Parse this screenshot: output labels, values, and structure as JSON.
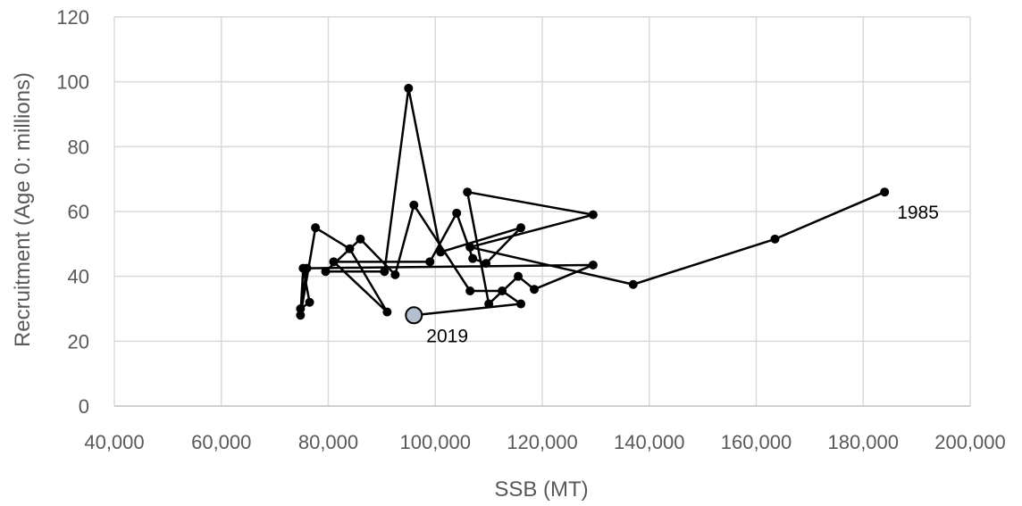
{
  "chart_data": {
    "type": "scatter",
    "xlabel": "SSB (MT)",
    "ylabel": "Recruitment (Age 0: millions)",
    "xlim": [
      40000,
      200000
    ],
    "ylim": [
      0,
      120
    ],
    "x_ticks": [
      "40,000",
      "60,000",
      "80,000",
      "100,000",
      "120,000",
      "140,000",
      "160,000",
      "180,000",
      "200,000"
    ],
    "y_ticks": [
      "0",
      "20",
      "40",
      "60",
      "80",
      "100",
      "120"
    ],
    "grid": true,
    "connected": true,
    "line_color": "#000000",
    "marker_color": "#000000",
    "last_marker_color": "#b4c0d0",
    "annotations": [
      {
        "text": "1985",
        "x": 184000,
        "y": 66
      },
      {
        "text": "2019",
        "x": 96000,
        "y": 28
      }
    ],
    "series": [
      {
        "points": [
          [
            184000,
            66
          ],
          [
            163500,
            51.5
          ],
          [
            137000,
            37.5
          ],
          [
            106500,
            49
          ],
          [
            129500,
            59
          ],
          [
            106000,
            66
          ],
          [
            110000,
            31.5
          ],
          [
            115500,
            40
          ],
          [
            118500,
            36
          ],
          [
            129500,
            43.5
          ],
          [
            76000,
            42.5
          ],
          [
            74800,
            30
          ],
          [
            76500,
            32
          ],
          [
            75300,
            42.5
          ],
          [
            74800,
            28
          ],
          [
            77600,
            55
          ],
          [
            84000,
            48.5
          ],
          [
            91000,
            29
          ],
          [
            81000,
            44.5
          ],
          [
            99000,
            44.5
          ],
          [
            104000,
            59.5
          ],
          [
            107000,
            45.5
          ],
          [
            109500,
            44
          ],
          [
            116000,
            55
          ],
          [
            101000,
            47.5
          ],
          [
            95000,
            98
          ],
          [
            90500,
            41.5
          ],
          [
            79500,
            41.5
          ],
          [
            86000,
            51.5
          ],
          [
            92500,
            40.5
          ],
          [
            96000,
            62
          ],
          [
            106500,
            35.5
          ],
          [
            112500,
            35.5
          ],
          [
            116000,
            31.5
          ],
          [
            96000,
            28
          ]
        ]
      }
    ]
  }
}
